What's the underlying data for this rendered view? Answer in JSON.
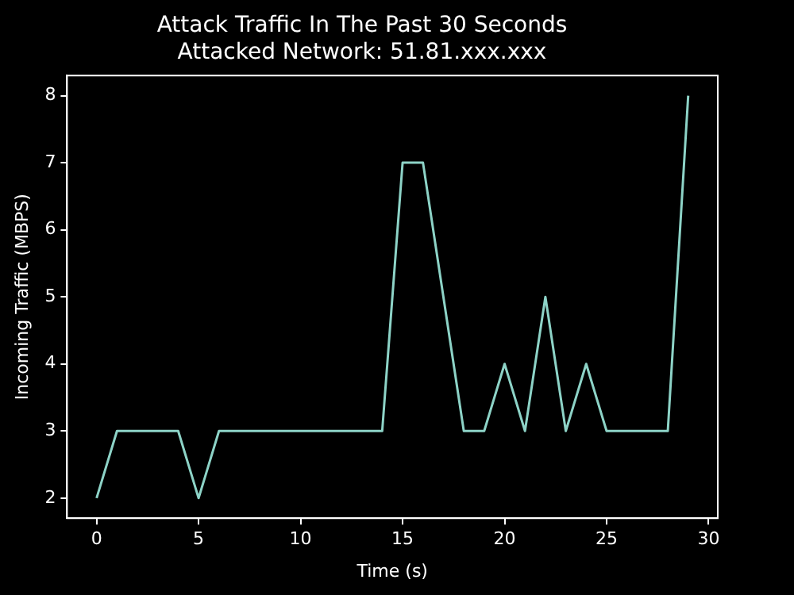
{
  "chart_data": {
    "type": "line",
    "title": "Attack Traffic In The Past 30 Seconds",
    "subtitle": "Attacked Network: 51.81.xxx.xxx",
    "xlabel": "Time (s)",
    "ylabel": "Incoming Traffic (MBPS)",
    "x": [
      0,
      1,
      2,
      3,
      4,
      5,
      6,
      7,
      8,
      9,
      10,
      11,
      12,
      13,
      14,
      15,
      16,
      17,
      18,
      19,
      20,
      21,
      22,
      23,
      24,
      25,
      26,
      27,
      28,
      29
    ],
    "series": [
      {
        "color": "#8dd3c7",
        "values": [
          2,
          3,
          3,
          3,
          3,
          2,
          3,
          3,
          3,
          3,
          3,
          3,
          3,
          3,
          3,
          7,
          7,
          5,
          3,
          3,
          4,
          3,
          5,
          3,
          4,
          3,
          3,
          3,
          3,
          8
        ]
      }
    ],
    "xlim": [
      -1.45,
      30.45
    ],
    "xticks": [
      0,
      5,
      10,
      15,
      20,
      25,
      30
    ],
    "ylim": [
      1.7,
      8.3
    ],
    "yticks": [
      2,
      3,
      4,
      5,
      6,
      7,
      8
    ],
    "grid": false,
    "legend": false,
    "marker": "none",
    "line_style": "solid"
  }
}
